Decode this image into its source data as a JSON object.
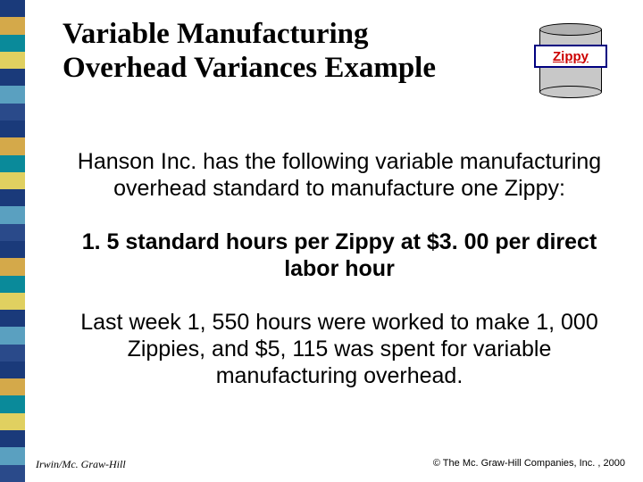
{
  "title": "Variable Manufacturing Overhead Variances Example",
  "can_label": "Zippy",
  "para1": "Hanson Inc. has the following variable manufacturing overhead standard to manufacture one Zippy:",
  "para2": "1. 5 standard hours per Zippy at $3. 00 per direct labor hour",
  "para3": "Last week 1, 550 hours were worked to make 1, 000 Zippies, and $5, 115 was spent for variable manufacturing overhead.",
  "footer_left": "Irwin/Mc. Graw-Hill",
  "footer_right": "© The Mc. Graw-Hill Companies, Inc. , 2000",
  "sidebar_colors": [
    "#1a3a7a",
    "#d4a94a",
    "#0a8a9a",
    "#e0d060",
    "#1a3a7a",
    "#5aa0c0",
    "#2a4a8a",
    "#1a3a7a",
    "#d4a94a",
    "#0a8a9a",
    "#e0d060",
    "#1a3a7a",
    "#5aa0c0",
    "#2a4a8a",
    "#1a3a7a",
    "#d4a94a",
    "#0a8a9a",
    "#e0d060",
    "#1a3a7a",
    "#5aa0c0",
    "#2a4a8a",
    "#1a3a7a",
    "#d4a94a",
    "#0a8a9a",
    "#e0d060",
    "#1a3a7a",
    "#5aa0c0",
    "#2a4a8a"
  ]
}
